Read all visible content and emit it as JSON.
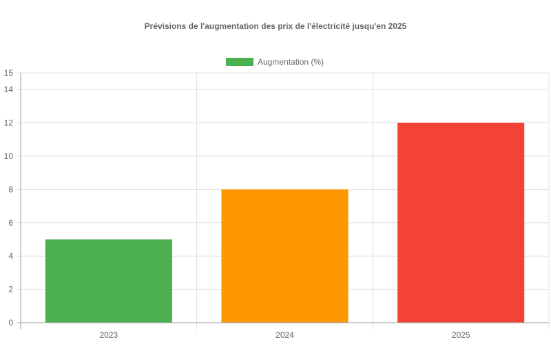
{
  "chart_data": {
    "type": "bar",
    "title": "Prévisions de l'augmentation des prix de l'électricité jusqu'en 2025",
    "categories": [
      "2023",
      "2024",
      "2025"
    ],
    "series": [
      {
        "name": "Augmentation (%)",
        "values": [
          5,
          8,
          12
        ]
      }
    ],
    "bar_colors": [
      "#4caf50",
      "#ff9800",
      "#f44336"
    ],
    "legend": {
      "position": "top",
      "swatch_color": "#4caf50"
    },
    "y_ticks": [
      "0",
      "2",
      "4",
      "6",
      "8",
      "10",
      "12",
      "14",
      "15"
    ],
    "ylim": [
      0,
      15
    ],
    "grid": true,
    "colors": {
      "grid": "#e0e0e0",
      "axis": "#999999",
      "text": "#666666"
    }
  }
}
